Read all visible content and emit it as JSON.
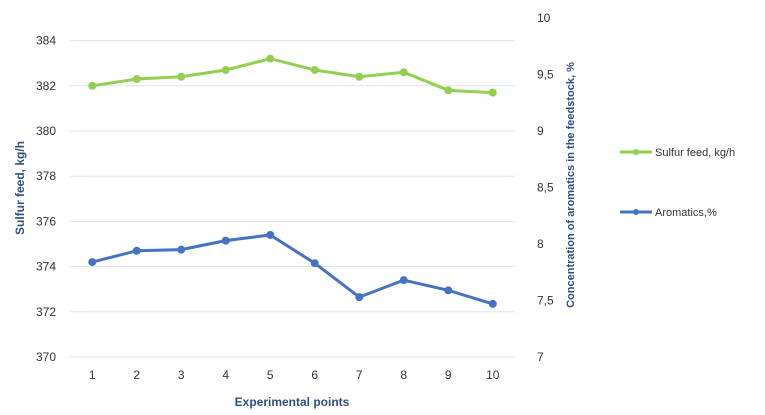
{
  "chart_data": {
    "type": "line",
    "title": "",
    "xlabel": "Experimental points",
    "ylabel": "Sulfur feed, kg/h",
    "y2label": "Concentration of aromatics in the feedstock, %",
    "categories": [
      "1",
      "2",
      "3",
      "4",
      "5",
      "6",
      "7",
      "8",
      "9",
      "10"
    ],
    "ylim": [
      370,
      385
    ],
    "yticks": [
      "370",
      "372",
      "374",
      "376",
      "378",
      "380",
      "382",
      "384"
    ],
    "y2lim": [
      7,
      10
    ],
    "y2ticks": [
      "7",
      "7,5",
      "8",
      "8,5",
      "9",
      "9,5",
      "10"
    ],
    "grid": true,
    "legend_position": "right",
    "series": [
      {
        "name": "Sulfur feed, kg/h",
        "axis": "left",
        "color": "#92D050",
        "values": [
          382.0,
          382.3,
          382.4,
          382.7,
          383.2,
          382.7,
          382.4,
          382.6,
          381.8,
          381.7
        ]
      },
      {
        "name": "Aromatics,%",
        "axis": "right",
        "color": "#4472C4",
        "values": [
          7.84,
          7.94,
          7.95,
          8.03,
          8.08,
          7.83,
          7.53,
          7.68,
          7.59,
          7.47
        ]
      }
    ]
  },
  "colors": {
    "axis_text": "#333333",
    "axis_title": "#2F4F7F",
    "grid": "#D9E6F2"
  }
}
